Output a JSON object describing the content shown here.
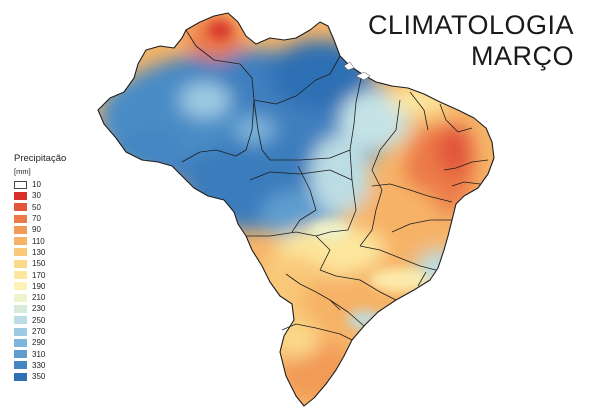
{
  "title": {
    "line1": "CLIMATOLOGIA",
    "line2": "MARÇO"
  },
  "legend": {
    "title": "Precipitação",
    "unit": "[mm]",
    "items": [
      {
        "label": "10",
        "color": "#ffffff"
      },
      {
        "label": "30",
        "color": "#d7302a"
      },
      {
        "label": "50",
        "color": "#e2553a"
      },
      {
        "label": "70",
        "color": "#ec7a48"
      },
      {
        "label": "90",
        "color": "#f29a57"
      },
      {
        "label": "110",
        "color": "#f6b266"
      },
      {
        "label": "130",
        "color": "#f9c878"
      },
      {
        "label": "150",
        "color": "#fbd98a"
      },
      {
        "label": "170",
        "color": "#fde79e"
      },
      {
        "label": "190",
        "color": "#fdf3b6"
      },
      {
        "label": "210",
        "color": "#eef5cd"
      },
      {
        "label": "230",
        "color": "#d8ebda"
      },
      {
        "label": "250",
        "color": "#bcdde4"
      },
      {
        "label": "270",
        "color": "#9dcbe2"
      },
      {
        "label": "290",
        "color": "#7eb5da"
      },
      {
        "label": "310",
        "color": "#5f9dcf"
      },
      {
        "label": "330",
        "color": "#4386c3"
      },
      {
        "label": "350",
        "color": "#2f70b4"
      }
    ]
  }
}
